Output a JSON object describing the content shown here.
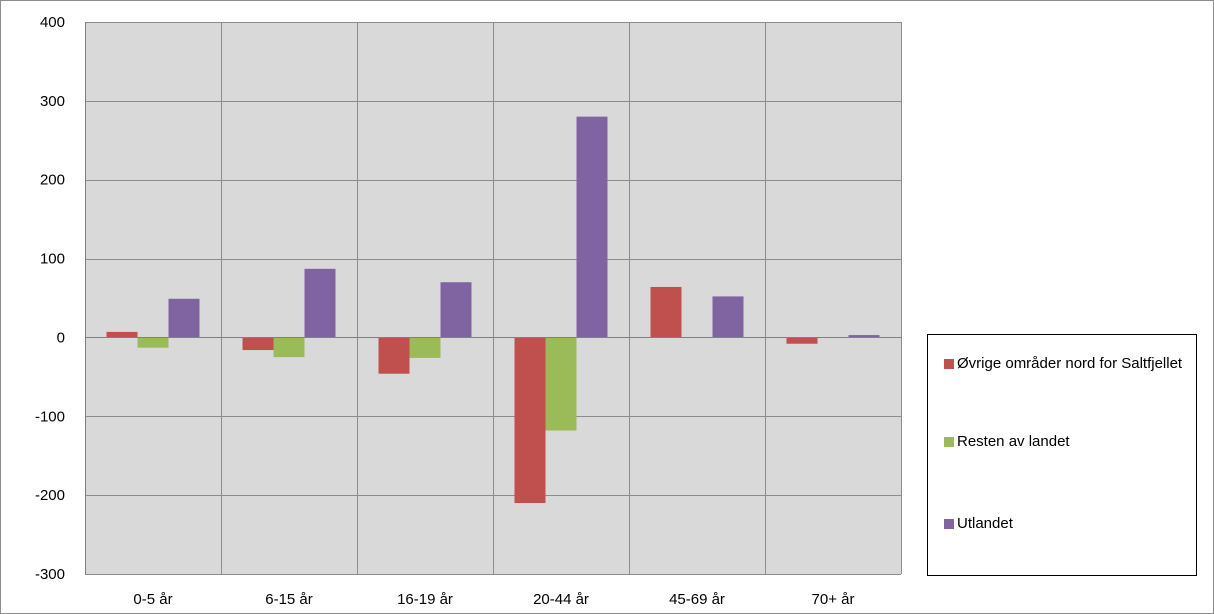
{
  "chart_data": {
    "type": "bar",
    "categories": [
      "0-5 år",
      "6-15 år",
      "16-19 år",
      "20-44 år",
      "45-69 år",
      "70+ år"
    ],
    "series": [
      {
        "name": "Øvrige områder nord for Saltfjellet",
        "color": "#c0504d",
        "values": [
          7,
          -16,
          -46,
          -210,
          64,
          -8
        ]
      },
      {
        "name": "Resten av landet",
        "color": "#9bbb59",
        "values": [
          -13,
          -25,
          -26,
          -118,
          0,
          0
        ]
      },
      {
        "name": "Utlandet",
        "color": "#8064a2",
        "values": [
          49,
          87,
          70,
          280,
          52,
          3
        ]
      }
    ],
    "ylim": [
      -300,
      400
    ],
    "yticks": [
      -300,
      -200,
      -100,
      0,
      100,
      200,
      300,
      400
    ],
    "ytick_labels": [
      "-300",
      "-200",
      "-100",
      "0",
      "100",
      "200",
      "300",
      "400"
    ],
    "grid": true,
    "legend_position": "right",
    "plot_background": "#d9d9d9",
    "title": "",
    "xlabel": "",
    "ylabel": ""
  }
}
